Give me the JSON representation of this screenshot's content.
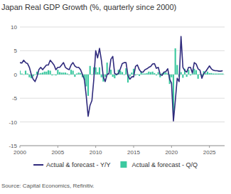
{
  "chart_data": {
    "type": "line",
    "title": "Japan Real GDP Growth (%, quarterly since 2000)",
    "source": "Source: Capital Economics, Refinitiv.",
    "x": [
      2000,
      2000.25,
      2000.5,
      2000.75,
      2001,
      2001.25,
      2001.5,
      2001.75,
      2002,
      2002.25,
      2002.5,
      2002.75,
      2003,
      2003.25,
      2003.5,
      2003.75,
      2004,
      2004.25,
      2004.5,
      2004.75,
      2005,
      2005.25,
      2005.5,
      2005.75,
      2006,
      2006.25,
      2006.5,
      2006.75,
      2007,
      2007.25,
      2007.5,
      2007.75,
      2008,
      2008.25,
      2008.5,
      2008.75,
      2009,
      2009.25,
      2009.5,
      2009.75,
      2010,
      2010.25,
      2010.5,
      2010.75,
      2011,
      2011.25,
      2011.5,
      2011.75,
      2012,
      2012.25,
      2012.5,
      2012.75,
      2013,
      2013.25,
      2013.5,
      2013.75,
      2014,
      2014.25,
      2014.5,
      2014.75,
      2015,
      2015.25,
      2015.5,
      2015.75,
      2016,
      2016.25,
      2016.5,
      2016.75,
      2017,
      2017.25,
      2017.5,
      2017.75,
      2018,
      2018.25,
      2018.5,
      2018.75,
      2019,
      2019.25,
      2019.5,
      2019.75,
      2020,
      2020.25,
      2020.5,
      2020.75,
      2021,
      2021.25,
      2021.5,
      2021.75,
      2022,
      2022.25,
      2022.5,
      2022.75,
      2023,
      2023.25,
      2023.5,
      2023.75,
      2024,
      2024.25,
      2024.5,
      2024.75,
      2025,
      2025.25,
      2025.5,
      2025.75,
      2026,
      2026.25,
      2026.5,
      2026.75
    ],
    "series": [
      {
        "name": "Actual & forecast - Y/Y",
        "type": "line",
        "color": "#2f2a7c",
        "values": [
          2.5,
          2.4,
          3.0,
          2.5,
          2.3,
          1.5,
          0.0,
          -1.0,
          -1.5,
          -0.5,
          1.0,
          1.5,
          1.0,
          1.5,
          2.0,
          2.0,
          3.0,
          2.5,
          2.0,
          1.0,
          1.5,
          1.5,
          2.0,
          2.5,
          1.5,
          1.2,
          1.0,
          2.0,
          2.5,
          1.8,
          1.5,
          1.5,
          1.0,
          0.0,
          -1.0,
          -4.5,
          -8.8,
          -6.5,
          -5.5,
          -1.0,
          5.0,
          3.5,
          5.5,
          3.0,
          -0.5,
          -1.5,
          0.0,
          0.2,
          3.2,
          3.8,
          0.2,
          0.0,
          0.2,
          1.2,
          2.3,
          2.5,
          2.5,
          -0.2,
          -1.0,
          -0.5,
          -0.5,
          1.7,
          2.0,
          1.0,
          0.5,
          0.5,
          1.0,
          1.2,
          1.5,
          1.7,
          2.2,
          2.3,
          1.3,
          1.5,
          0.0,
          -0.2,
          0.5,
          0.6,
          1.2,
          -1.0,
          -1.8,
          -9.8,
          -5.5,
          -0.8,
          -1.5,
          8.0,
          1.5,
          0.8,
          0.5,
          1.5,
          1.5,
          0.3,
          2.5,
          2.2,
          1.2,
          0.9,
          -0.8,
          0.2,
          0.6,
          1.2,
          1.8,
          1.2,
          0.9,
          0.8,
          0.8,
          0.7,
          0.7,
          0.8
        ]
      },
      {
        "name": "Actual & forecast - Q/Q",
        "type": "bar",
        "color": "#3cc9a0",
        "values": [
          0.8,
          0.2,
          0.0,
          0.8,
          0.2,
          -0.6,
          -0.8,
          -0.4,
          0.0,
          0.6,
          0.2,
          0.3,
          0.4,
          0.6,
          0.6,
          0.9,
          0.8,
          -0.2,
          0.0,
          -0.2,
          1.0,
          0.5,
          0.4,
          0.4,
          0.4,
          0.2,
          -0.1,
          1.0,
          0.8,
          -0.5,
          0.2,
          0.4,
          0.3,
          -0.6,
          -1.2,
          -2.5,
          -4.5,
          1.8,
          0.0,
          1.5,
          1.5,
          0.5,
          1.5,
          -0.6,
          -1.5,
          -0.5,
          2.5,
          0.0,
          1.0,
          -0.5,
          -0.8,
          -0.2,
          1.0,
          0.8,
          0.5,
          -0.1,
          1.3,
          -1.7,
          -0.4,
          0.4,
          1.2,
          -0.2,
          0.1,
          -0.3,
          0.7,
          0.2,
          0.2,
          0.3,
          0.6,
          0.5,
          0.6,
          0.3,
          -0.2,
          0.5,
          -0.6,
          0.3,
          0.5,
          0.4,
          0.2,
          -2.0,
          -0.6,
          -8.0,
          5.5,
          2.0,
          -0.5,
          0.5,
          -0.7,
          1.2,
          -0.5,
          1.0,
          -0.2,
          0.2,
          1.2,
          0.9,
          -0.9,
          0.1,
          -0.6,
          0.7,
          0.3,
          0.6,
          0.3,
          0.3,
          0.2,
          0.2,
          0.2,
          0.2,
          0.2,
          0.2
        ]
      }
    ],
    "xlim": [
      2000,
      2027
    ],
    "xticks": [
      2000,
      2005,
      2010,
      2015,
      2020,
      2025
    ],
    "ylim": [
      -15,
      10
    ],
    "yticks": [
      -15,
      -10,
      -5,
      0,
      5,
      10
    ],
    "grid": true,
    "legend": "bottom"
  }
}
